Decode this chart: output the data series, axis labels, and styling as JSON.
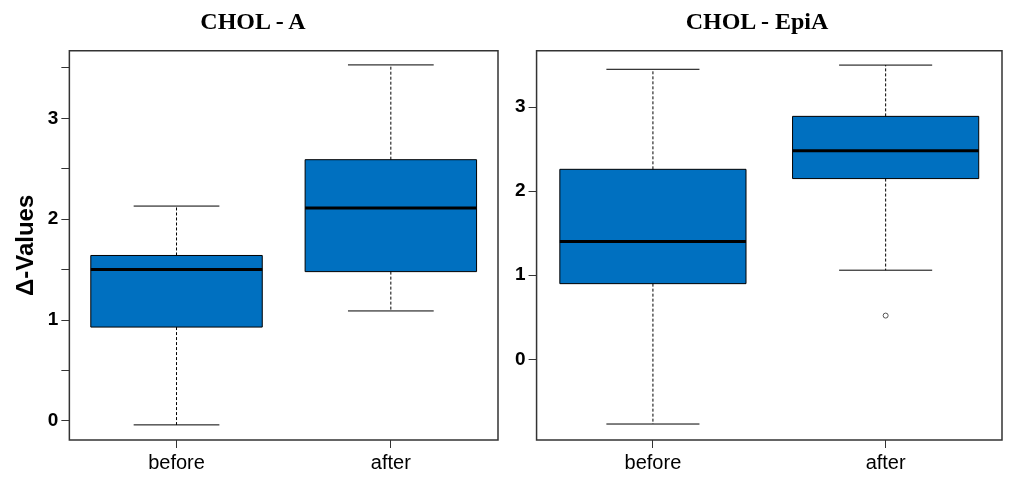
{
  "chart_data": [
    {
      "type": "box",
      "title": "CHOL - A",
      "ylabel": "Δ-Values",
      "categories": [
        "before",
        "after"
      ],
      "color": "#0070c0",
      "grid": false,
      "ylim": [
        -0.19,
        3.67
      ],
      "yticks": [
        0,
        {
          "value": 0.5,
          "label": null
        },
        1,
        {
          "value": 1.5,
          "label": null
        },
        2,
        {
          "value": 2.5,
          "label": null
        },
        3,
        {
          "value": 3.5,
          "label": null
        }
      ],
      "boxes": [
        {
          "low": -0.04,
          "q1": 0.93,
          "median": 1.5,
          "q3": 1.64,
          "high": 2.13
        },
        {
          "low": 1.09,
          "q1": 1.48,
          "median": 2.11,
          "q3": 2.59,
          "high": 3.53
        }
      ]
    },
    {
      "type": "box",
      "title": "CHOL - EpiA",
      "categories": [
        "before",
        "after"
      ],
      "color": "#0070c0",
      "grid": false,
      "ylim": [
        -0.96,
        3.67
      ],
      "yticks": [
        0,
        1,
        2,
        3
      ],
      "boxes": [
        {
          "low": -0.77,
          "q1": 0.9,
          "median": 1.4,
          "q3": 2.26,
          "high": 3.45
        },
        {
          "low": 1.06,
          "q1": 2.15,
          "median": 2.48,
          "q3": 2.89,
          "high": 3.5,
          "outliers": [
            0.52
          ]
        }
      ]
    }
  ]
}
